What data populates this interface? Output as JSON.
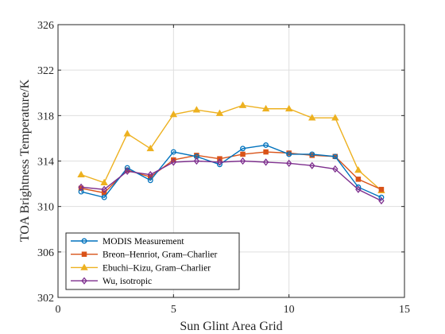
{
  "chart_data": {
    "type": "line",
    "title": "",
    "xlabel": "Sun Glint Area Grid",
    "ylabel": "TOA Brightness Temperature/K",
    "xlim": [
      0,
      15
    ],
    "ylim": [
      302,
      326
    ],
    "xticks": [
      0,
      5,
      10,
      15
    ],
    "yticks": [
      302,
      306,
      310,
      314,
      318,
      322,
      326
    ],
    "grid": true,
    "legend_position": "bottom-left",
    "x": [
      1,
      2,
      3,
      4,
      5,
      6,
      7,
      8,
      9,
      10,
      11,
      12,
      13,
      14
    ],
    "series": [
      {
        "name": "MODIS Measurement",
        "color": "#0072BD",
        "marker": "circle",
        "values": [
          311.3,
          310.8,
          313.4,
          312.3,
          314.8,
          314.4,
          313.7,
          315.1,
          315.4,
          314.6,
          314.6,
          314.4,
          311.7,
          310.8
        ]
      },
      {
        "name": "Breon–Henriot, Gram–Charlier",
        "color": "#D95319",
        "marker": "square",
        "values": [
          311.6,
          311.2,
          313.2,
          312.6,
          314.1,
          314.5,
          314.2,
          314.6,
          314.8,
          314.7,
          314.5,
          314.4,
          312.4,
          311.5
        ]
      },
      {
        "name": "Ebuchi–Kizu, Gram–Charlier",
        "color": "#EDB120",
        "marker": "triangle",
        "values": [
          312.8,
          312.1,
          316.4,
          315.1,
          318.1,
          318.5,
          318.2,
          318.9,
          318.6,
          318.6,
          317.8,
          317.8,
          313.2,
          311.4
        ]
      },
      {
        "name": "Wu, isotropic",
        "color": "#7E2F8E",
        "marker": "diamond",
        "values": [
          311.7,
          311.5,
          313.1,
          312.8,
          313.9,
          314.0,
          313.9,
          314.0,
          313.9,
          313.8,
          313.6,
          313.3,
          311.5,
          310.5
        ]
      }
    ]
  }
}
